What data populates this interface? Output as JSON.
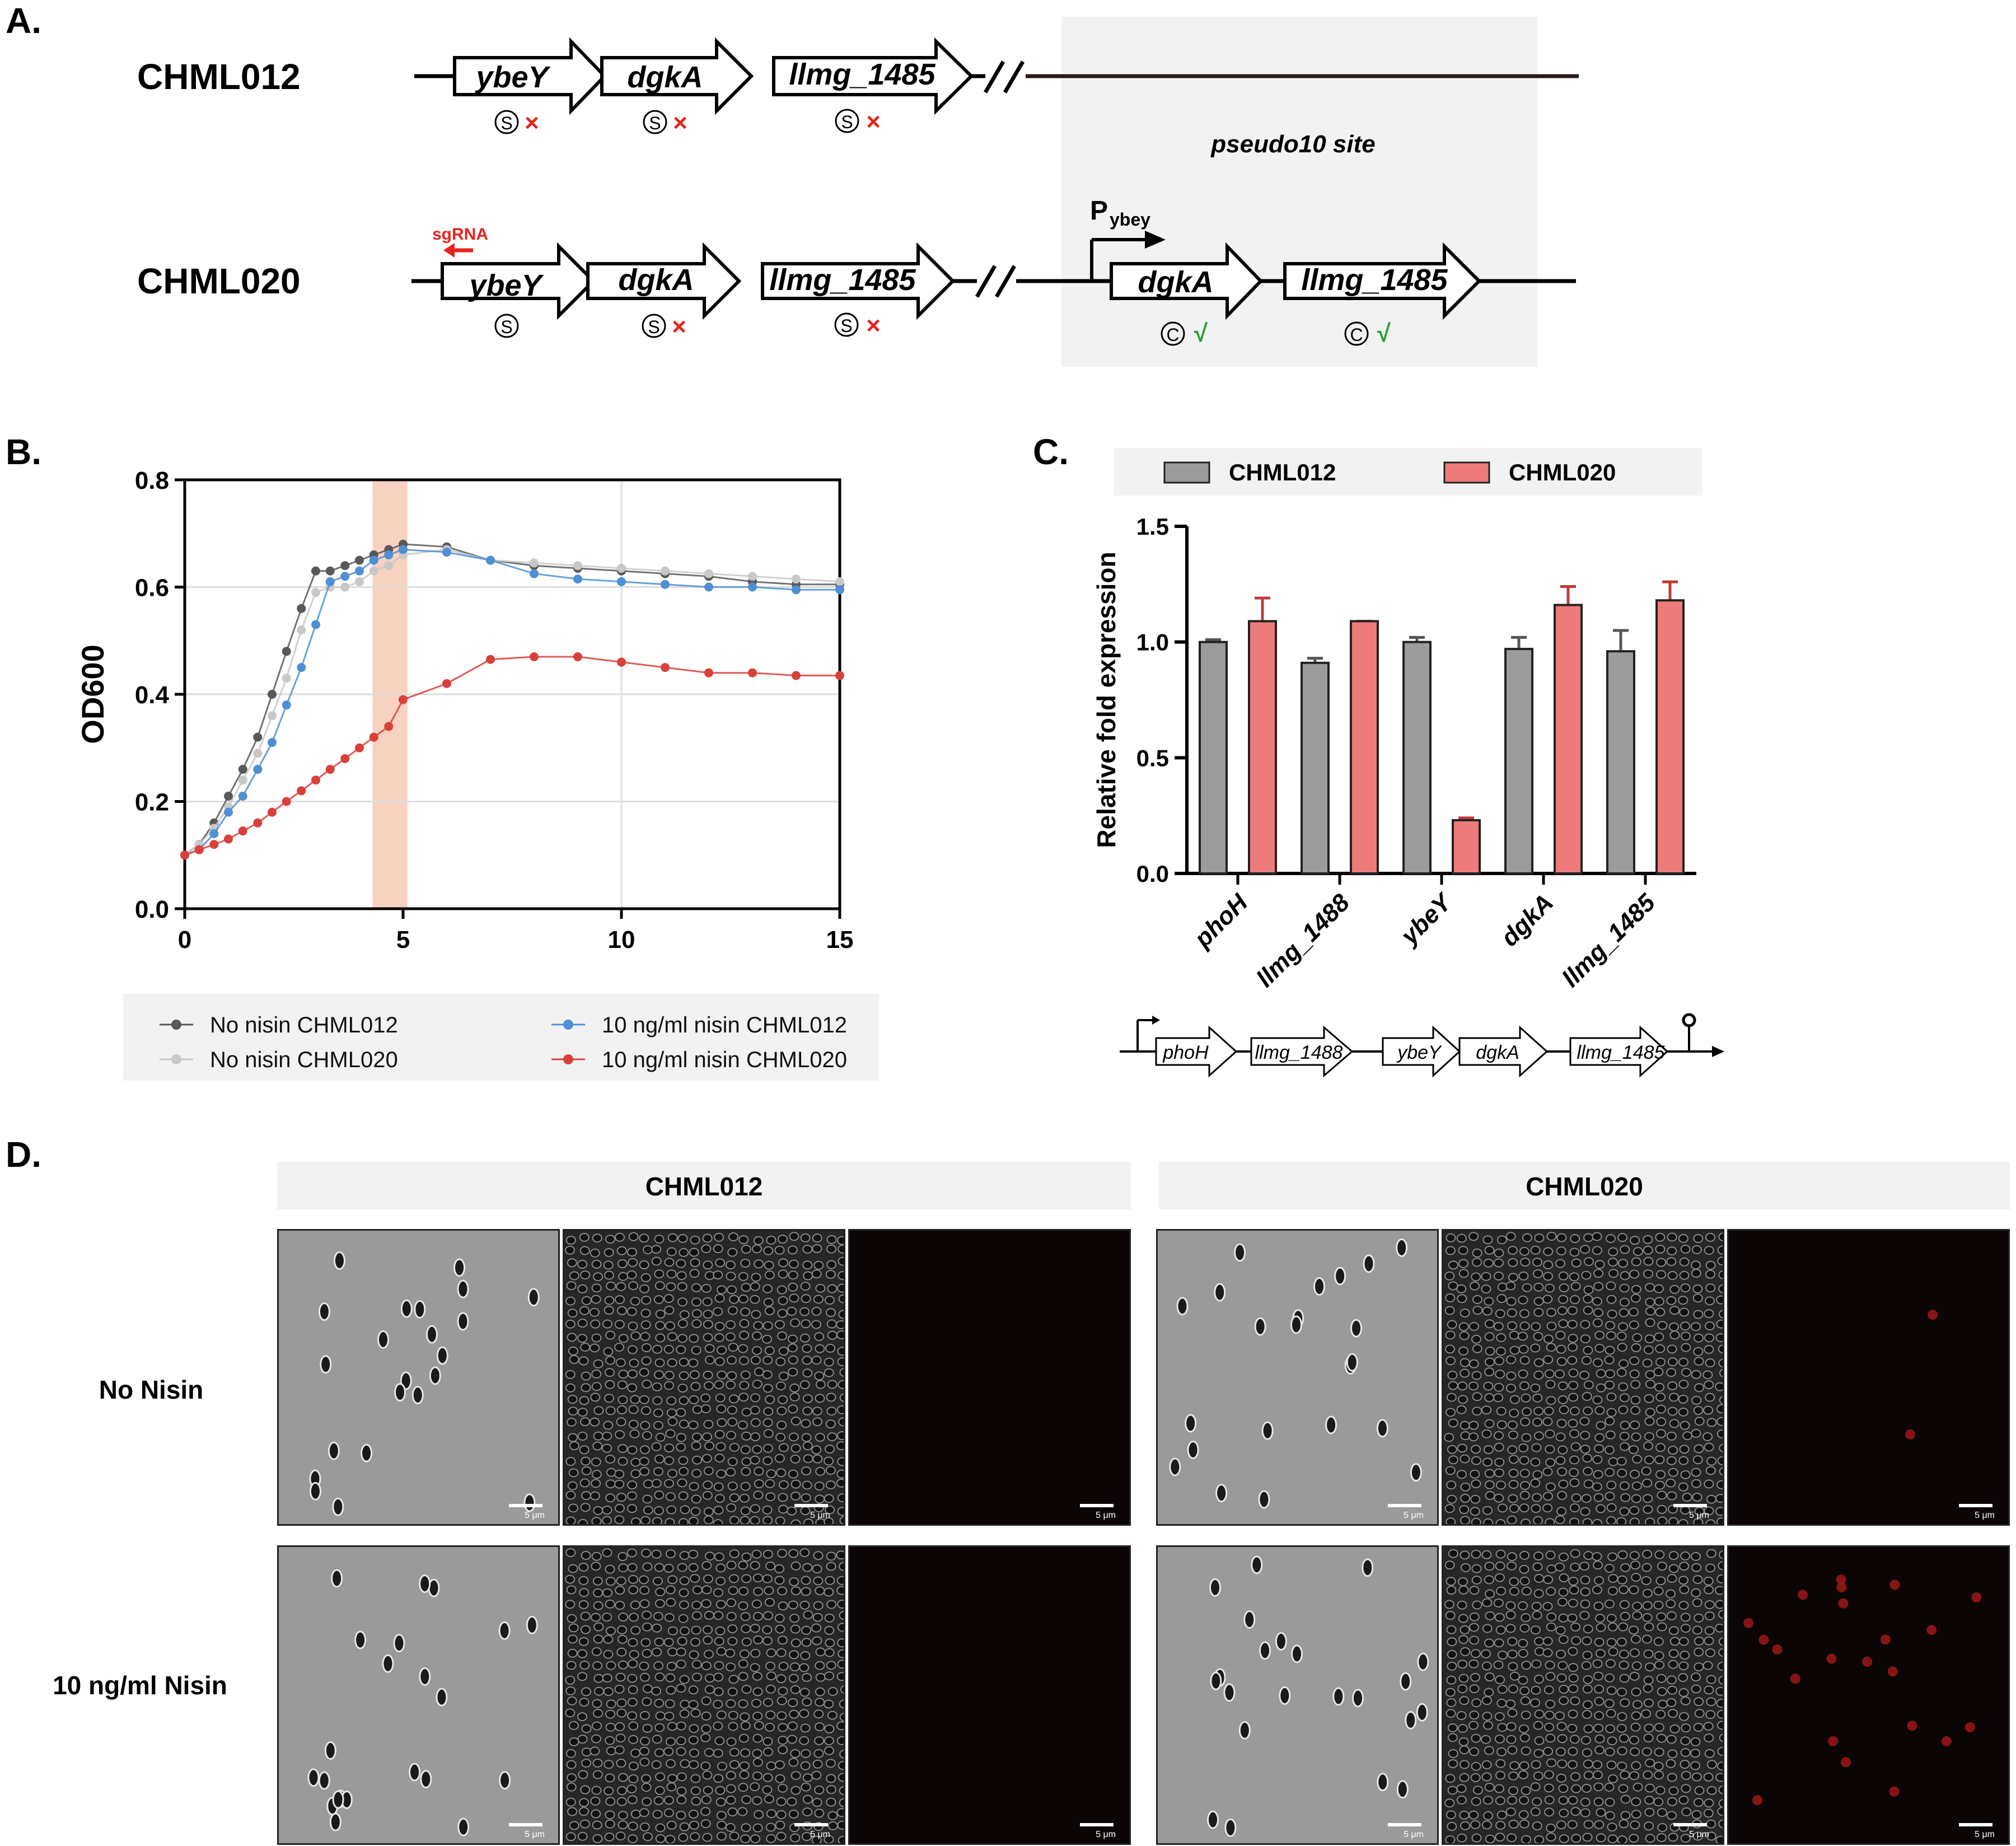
{
  "panels": {
    "a": "A.",
    "b": "B.",
    "c": "C.",
    "d": "D."
  },
  "panel_a": {
    "strain1": "CHML012",
    "strain2": "CHML020",
    "genes1": [
      "ybeY",
      "dgkA",
      "llmg_1485"
    ],
    "genes2": [
      "ybeY",
      "dgkA",
      "llmg_1485"
    ],
    "genes_insert": [
      "dgkA",
      "llmg_1485"
    ],
    "site_label": "pseudo10 site",
    "sgrna": "sgRNA",
    "promoter_main": "P",
    "promoter_sub": "ybey",
    "mark_s": "S",
    "mark_c": "C",
    "cross": "×",
    "check": "√",
    "colors": {
      "red": "#e8231c",
      "green": "#22a23a",
      "site_bg": "#f2f2f2"
    }
  },
  "chart_data": [
    {
      "type": "line",
      "ylabel": "OD600",
      "xlabel": "",
      "xlim": [
        0,
        15
      ],
      "ylim": [
        0,
        0.8
      ],
      "xticks": [
        "0",
        "5",
        "10",
        "15"
      ],
      "yticks": [
        "0.0",
        "0.2",
        "0.4",
        "0.6",
        "0.8"
      ],
      "grid": true,
      "highlight_x": [
        4.3,
        5.1
      ],
      "legend_position": "bottom",
      "series": [
        {
          "name": "No nisin CHML012",
          "color": "#595959",
          "x": [
            0,
            0.33,
            0.67,
            1,
            1.33,
            1.67,
            2,
            2.33,
            2.67,
            3,
            3.33,
            3.67,
            4,
            4.33,
            4.67,
            5,
            6,
            7,
            8,
            9,
            10,
            11,
            12,
            13,
            14,
            15
          ],
          "y": [
            0.1,
            0.12,
            0.16,
            0.21,
            0.26,
            0.32,
            0.4,
            0.48,
            0.56,
            0.63,
            0.63,
            0.64,
            0.65,
            0.66,
            0.67,
            0.68,
            0.675,
            0.65,
            0.64,
            0.635,
            0.63,
            0.625,
            0.62,
            0.61,
            0.605,
            0.605
          ]
        },
        {
          "name": "No nisin CHML020",
          "color": "#c8c8c8",
          "x": [
            0,
            0.33,
            0.67,
            1,
            1.33,
            1.67,
            2,
            2.33,
            2.67,
            3,
            3.33,
            3.67,
            4,
            4.33,
            4.67,
            5,
            6,
            7,
            8,
            9,
            10,
            11,
            12,
            13,
            14,
            15
          ],
          "y": [
            0.1,
            0.12,
            0.15,
            0.19,
            0.24,
            0.29,
            0.36,
            0.43,
            0.52,
            0.59,
            0.6,
            0.6,
            0.61,
            0.63,
            0.64,
            0.66,
            0.67,
            0.65,
            0.645,
            0.64,
            0.635,
            0.63,
            0.625,
            0.62,
            0.615,
            0.61
          ]
        },
        {
          "name": "10 ng/ml nisin CHML012",
          "color": "#4f8fd6",
          "x": [
            0,
            0.33,
            0.67,
            1,
            1.33,
            1.67,
            2,
            2.33,
            2.67,
            3,
            3.33,
            3.67,
            4,
            4.33,
            4.67,
            5,
            6,
            7,
            8,
            9,
            10,
            11,
            12,
            13,
            14,
            15
          ],
          "y": [
            0.1,
            0.11,
            0.14,
            0.18,
            0.21,
            0.26,
            0.31,
            0.38,
            0.45,
            0.53,
            0.61,
            0.62,
            0.63,
            0.65,
            0.66,
            0.67,
            0.665,
            0.65,
            0.625,
            0.615,
            0.61,
            0.605,
            0.6,
            0.6,
            0.595,
            0.595
          ]
        },
        {
          "name": "10 ng/ml nisin CHML020",
          "color": "#d9403a",
          "x": [
            0,
            0.33,
            0.67,
            1,
            1.33,
            1.67,
            2,
            2.33,
            2.67,
            3,
            3.33,
            3.67,
            4,
            4.33,
            4.67,
            5,
            6,
            7,
            8,
            9,
            10,
            11,
            12,
            13,
            14,
            15
          ],
          "y": [
            0.1,
            0.11,
            0.12,
            0.13,
            0.145,
            0.16,
            0.18,
            0.2,
            0.22,
            0.24,
            0.26,
            0.28,
            0.3,
            0.32,
            0.34,
            0.39,
            0.42,
            0.465,
            0.47,
            0.47,
            0.46,
            0.45,
            0.44,
            0.44,
            0.435,
            0.435
          ]
        }
      ]
    },
    {
      "type": "bar",
      "ylabel": "Relative fold expression",
      "xlabel": "",
      "ylim": [
        0,
        1.5
      ],
      "yticks": [
        "0.0",
        "0.5",
        "1.0",
        "1.5"
      ],
      "categories": [
        "phoH",
        "llmg_1488",
        "ybeY",
        "dgkA",
        "llmg_1485"
      ],
      "legend_position": "top",
      "series": [
        {
          "name": "CHML012",
          "color": "#9c9c9c",
          "values": [
            1.0,
            0.91,
            1.0,
            0.97,
            0.96
          ],
          "errors": [
            0.01,
            0.02,
            0.02,
            0.05,
            0.09
          ]
        },
        {
          "name": "CHML020",
          "color": "#ee7b7b",
          "values": [
            1.09,
            1.09,
            0.23,
            1.16,
            1.18
          ],
          "errors": [
            0.1,
            0.0,
            0.01,
            0.08,
            0.08
          ]
        }
      ]
    }
  ],
  "operon": {
    "genes": [
      "phoH",
      "llmg_1488",
      "ybeY",
      "dgkA",
      "llmg_1485"
    ]
  },
  "panel_d": {
    "col1": "CHML012",
    "col2": "CHML020",
    "row1": "No Nisin",
    "row2": "10 ng/ml Nisin",
    "scale": "5 μm"
  }
}
